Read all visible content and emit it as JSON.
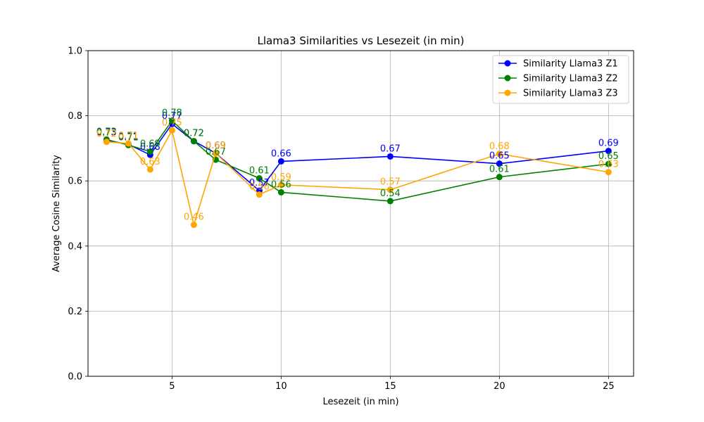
{
  "chart_data": {
    "type": "line",
    "title": "Llama3 Similarities vs Lesezeit (in min)",
    "xlabel": "Lesezeit (in min)",
    "ylabel": "Average Cosine Similarity",
    "xlim": [
      1.15,
      26.15
    ],
    "ylim": [
      0,
      1.0
    ],
    "xticks": [
      5,
      10,
      15,
      20,
      25
    ],
    "yticks": [
      0.0,
      0.2,
      0.4,
      0.6,
      0.8,
      1.0
    ],
    "ytick_labels": [
      "0.0",
      "0.2",
      "0.4",
      "0.6",
      "0.8",
      "1.0"
    ],
    "grid": true,
    "legend_position": "top-right",
    "x": [
      2,
      3,
      4,
      5,
      6,
      7,
      9,
      10,
      15,
      20,
      25
    ],
    "series": [
      {
        "name": "Similarity Llama3 Z1",
        "color": "#0000ff",
        "values": [
          0.725,
          0.712,
          0.68,
          0.775,
          0.722,
          0.685,
          0.57,
          0.66,
          0.675,
          0.653,
          0.692
        ],
        "labels": [
          "0.73",
          "0.71",
          "0.68",
          "0.77",
          "0.72",
          "0.69",
          "0.57",
          "0.66",
          "0.67",
          "0.65",
          "0.69"
        ]
      },
      {
        "name": "Similarity Llama3 Z2",
        "color": "#008000",
        "values": [
          0.727,
          0.71,
          0.69,
          0.785,
          0.722,
          0.665,
          0.608,
          0.565,
          0.538,
          0.612,
          0.652
        ],
        "labels": [
          "0.73",
          "0.71",
          "0.69",
          "0.78",
          "0.72",
          "0.67",
          "0.61",
          "0.56",
          "0.54",
          "0.61",
          "0.65"
        ]
      },
      {
        "name": "Similarity Llama3 Z3",
        "color": "#ffa500",
        "values": [
          0.72,
          0.715,
          0.635,
          0.755,
          0.465,
          0.685,
          0.558,
          0.588,
          0.573,
          0.683,
          0.627
        ],
        "labels": [
          "0.72",
          "0.71",
          "0.63",
          "0.75",
          "0.46",
          "0.69",
          "0.56",
          "0.59",
          "0.57",
          "0.68",
          "0.63"
        ]
      }
    ]
  }
}
